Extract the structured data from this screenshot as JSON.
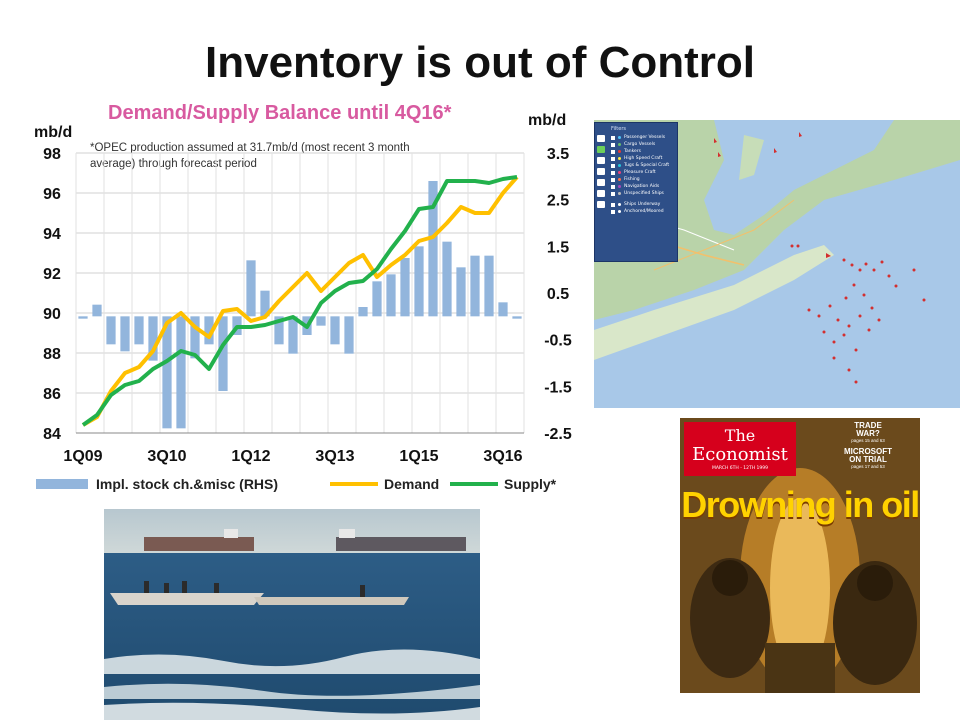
{
  "slide": {
    "title": "Inventory is out of Control"
  },
  "chart_data": {
    "type": "bar+line",
    "title": "Demand/Supply Balance until 4Q16*",
    "annotation_lines": [
      "*OPEC production assumed at 31.7mb/d  (most recent 3 month",
      "average) through forecast period"
    ],
    "left_axis": {
      "label": "mb/d",
      "ylim": [
        84,
        98
      ],
      "ticks": [
        "98",
        "96",
        "94",
        "92",
        "90",
        "88",
        "86",
        "84"
      ]
    },
    "right_axis": {
      "label": "mb/d",
      "ylim": [
        -2.5,
        3.5
      ],
      "ticks": [
        "3.5",
        "2.5",
        "1.5",
        "0.5",
        "-0.5",
        "-1.5",
        "-2.5"
      ]
    },
    "x_tick_labels": [
      "1Q09",
      "3Q10",
      "1Q12",
      "3Q13",
      "1Q15",
      "3Q16"
    ],
    "grid": true,
    "legend_position": "bottom",
    "quarters": 32,
    "series": [
      {
        "name": "Impl. stock ch.&misc (RHS)",
        "type": "bar",
        "color": "#92b5dc",
        "axis": "right",
        "values": [
          -0.05,
          0.25,
          -0.6,
          -0.75,
          -0.6,
          -0.95,
          -2.4,
          -2.4,
          -0.9,
          -0.6,
          -1.6,
          -0.4,
          1.2,
          0.55,
          -0.6,
          -0.8,
          -0.4,
          -0.2,
          -0.6,
          -0.8,
          0.2,
          0.75,
          0.9,
          1.25,
          1.5,
          2.9,
          1.6,
          1.05,
          1.3,
          1.3,
          0.3,
          -0.05
        ]
      },
      {
        "name": "Demand",
        "type": "line",
        "color": "#ffc000",
        "axis": "left",
        "values": [
          84.4,
          84.8,
          86.1,
          87.0,
          87.3,
          88.1,
          89.5,
          90.0,
          89.3,
          88.8,
          90.1,
          90.2,
          89.6,
          89.8,
          90.6,
          91.3,
          92.0,
          91.1,
          91.8,
          92.5,
          92.9,
          91.8,
          92.4,
          92.9,
          93.6,
          93.8,
          94.5,
          95.3,
          95.0,
          95.0,
          96.0,
          96.8
        ]
      },
      {
        "name": "Supply*",
        "type": "line",
        "color": "#22b14c",
        "axis": "left",
        "values": [
          84.4,
          84.9,
          85.9,
          86.4,
          86.6,
          87.2,
          87.6,
          88.1,
          87.9,
          87.2,
          88.4,
          89.3,
          89.3,
          89.4,
          89.6,
          89.8,
          89.3,
          90.5,
          91.1,
          91.5,
          91.6,
          92.2,
          93.2,
          94.1,
          95.2,
          95.3,
          96.6,
          96.6,
          96.6,
          96.5,
          96.7,
          96.8
        ]
      }
    ]
  },
  "map": {
    "filter_title": "Filters",
    "filter_items": [
      {
        "label": "Passenger Vessels",
        "color": "#4fc3f7"
      },
      {
        "label": "Cargo Vessels",
        "color": "#66bb6a"
      },
      {
        "label": "Tankers",
        "color": "#e53935"
      },
      {
        "label": "High Speed Craft",
        "color": "#ffeb3b"
      },
      {
        "label": "Tugs & Special Craft",
        "color": "#26c6da"
      },
      {
        "label": "Pleasure Craft",
        "color": "#ec407a"
      },
      {
        "label": "Fishing",
        "color": "#ff7043"
      },
      {
        "label": "Navigation Aids",
        "color": "#ab47bc"
      },
      {
        "label": "Unspecified Ships",
        "color": "#bdbdbd"
      }
    ],
    "status_items": [
      {
        "label": "Ships Underway",
        "color": "#ffffff"
      },
      {
        "label": "Anchored/Moored",
        "color": "#ffffff"
      }
    ]
  },
  "cover": {
    "logo_line1": "The",
    "logo_line2": "Economist",
    "date": "MARCH 6TH - 12TH 1999",
    "side1_title": "TRADE",
    "side1_title2": "WAR?",
    "side1_sub": "pages 15 and 63",
    "side2_title": "MICROSOFT",
    "side2_title2": "ON TRIAL",
    "side2_sub": "pages 17 and 53",
    "headline": "Drowning in oil"
  }
}
